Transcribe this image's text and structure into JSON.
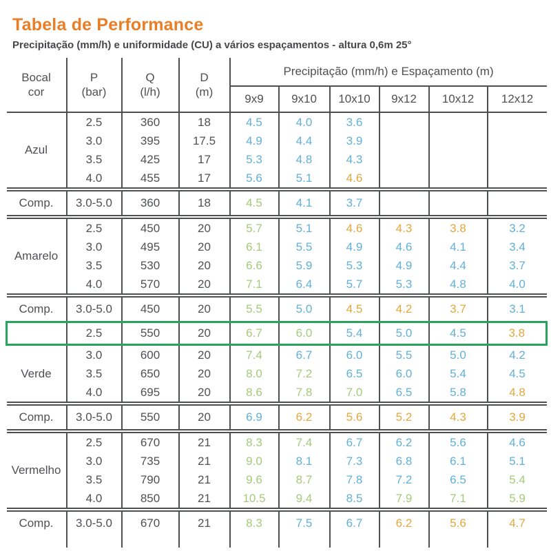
{
  "page": {
    "title": "Tabela de Performance",
    "subtitle": "Precipitação (mm/h) e uniformidade (CU) a vários espaçamentos - altura 0,6m 25°"
  },
  "colors": {
    "title_orange": "#e87f26",
    "line_gray": "#4d4e50",
    "value_blue": "#61b0d8",
    "value_green": "#a5ca79",
    "value_orange": "#e4a73c",
    "highlight_border_green": "#27a35c"
  },
  "table": {
    "headers": {
      "bocal": [
        "Bocal",
        "cor"
      ],
      "p": [
        "P",
        "(bar)"
      ],
      "q": [
        "Q",
        "(l/h)"
      ],
      "d": [
        "D",
        "(m)"
      ],
      "group": "Precipitação (mm/h) e Espaçamento (m)",
      "spacings": [
        "9x9",
        "9x10",
        "10x10",
        "9x12",
        "10x12",
        "12x12"
      ]
    },
    "rows": [
      {
        "kind": "data",
        "label": "Azul",
        "label_rowspan": 4,
        "p": "2.5",
        "q": "360",
        "d": "18",
        "vals": [
          [
            "4.5",
            "blue"
          ],
          [
            "4.0",
            "blue"
          ],
          [
            "3.6",
            "blue"
          ],
          null,
          null,
          null
        ]
      },
      {
        "kind": "data",
        "p": "3.0",
        "q": "395",
        "d": "17.5",
        "vals": [
          [
            "4.9",
            "blue"
          ],
          [
            "4.4",
            "blue"
          ],
          [
            "3.9",
            "blue"
          ],
          null,
          null,
          null
        ]
      },
      {
        "kind": "data",
        "p": "3.5",
        "q": "425",
        "d": "17",
        "vals": [
          [
            "5.3",
            "blue"
          ],
          [
            "4.8",
            "blue"
          ],
          [
            "4.3",
            "blue"
          ],
          null,
          null,
          null
        ]
      },
      {
        "kind": "data",
        "p": "4.0",
        "q": "455",
        "d": "17",
        "vals": [
          [
            "5.6",
            "blue"
          ],
          [
            "5.1",
            "blue"
          ],
          [
            "4.6",
            "orange"
          ],
          null,
          null,
          null
        ]
      },
      {
        "kind": "comp",
        "label": "Comp.",
        "p": "3.0-5.0",
        "q": "360",
        "d": "18",
        "vals": [
          [
            "4.5",
            "green"
          ],
          [
            "4.1",
            "blue"
          ],
          [
            "3.7",
            "blue"
          ],
          null,
          null,
          null
        ]
      },
      {
        "kind": "data",
        "label": "Amarelo",
        "label_rowspan": 4,
        "p": "2.5",
        "q": "450",
        "d": "20",
        "vals": [
          [
            "5.7",
            "green"
          ],
          [
            "5.1",
            "blue"
          ],
          [
            "4.6",
            "orange"
          ],
          [
            "4.3",
            "orange"
          ],
          [
            "3.8",
            "orange"
          ],
          [
            "3.2",
            "blue"
          ]
        ]
      },
      {
        "kind": "data",
        "p": "3.0",
        "q": "495",
        "d": "20",
        "vals": [
          [
            "6.1",
            "green"
          ],
          [
            "5.5",
            "blue"
          ],
          [
            "4.9",
            "blue"
          ],
          [
            "4.6",
            "blue"
          ],
          [
            "4.1",
            "blue"
          ],
          [
            "3.4",
            "blue"
          ]
        ]
      },
      {
        "kind": "data",
        "p": "3.5",
        "q": "530",
        "d": "20",
        "vals": [
          [
            "6.6",
            "green"
          ],
          [
            "5.9",
            "blue"
          ],
          [
            "5.3",
            "blue"
          ],
          [
            "4.9",
            "blue"
          ],
          [
            "4.4",
            "blue"
          ],
          [
            "3.7",
            "blue"
          ]
        ]
      },
      {
        "kind": "data",
        "p": "4.0",
        "q": "570",
        "d": "20",
        "vals": [
          [
            "7.1",
            "green"
          ],
          [
            "6.4",
            "blue"
          ],
          [
            "5.7",
            "blue"
          ],
          [
            "5.3",
            "blue"
          ],
          [
            "4.8",
            "blue"
          ],
          [
            "4.0",
            "blue"
          ]
        ]
      },
      {
        "kind": "comp",
        "before_highlight": true,
        "label": "Comp.",
        "p": "3.0-5.0",
        "q": "450",
        "d": "20",
        "vals": [
          [
            "5.5",
            "green"
          ],
          [
            "5.0",
            "blue"
          ],
          [
            "4.5",
            "orange"
          ],
          [
            "4.2",
            "orange"
          ],
          [
            "3.7",
            "orange"
          ],
          [
            "3.1",
            "blue"
          ]
        ]
      },
      {
        "kind": "data",
        "highlight": true,
        "label": "",
        "p": "2.5",
        "q": "550",
        "d": "20",
        "vals": [
          [
            "6.7",
            "green"
          ],
          [
            "6.0",
            "green"
          ],
          [
            "5.4",
            "blue"
          ],
          [
            "5.0",
            "blue"
          ],
          [
            "4.5",
            "blue"
          ],
          [
            "3.8",
            "orange"
          ]
        ]
      },
      {
        "kind": "data",
        "label": "Verde",
        "label_rowspan": 3,
        "p": "3.0",
        "q": "600",
        "d": "20",
        "vals": [
          [
            "7.4",
            "green"
          ],
          [
            "6.7",
            "blue"
          ],
          [
            "6.0",
            "blue"
          ],
          [
            "5.5",
            "blue"
          ],
          [
            "5.0",
            "blue"
          ],
          [
            "4.2",
            "blue"
          ]
        ]
      },
      {
        "kind": "data",
        "p": "3.5",
        "q": "650",
        "d": "20",
        "vals": [
          [
            "8.0",
            "green"
          ],
          [
            "7.2",
            "green"
          ],
          [
            "6.5",
            "blue"
          ],
          [
            "6.0",
            "blue"
          ],
          [
            "5.4",
            "blue"
          ],
          [
            "4.5",
            "blue"
          ]
        ]
      },
      {
        "kind": "data",
        "p": "4.0",
        "q": "695",
        "d": "20",
        "vals": [
          [
            "8.6",
            "green"
          ],
          [
            "7.8",
            "green"
          ],
          [
            "7.0",
            "green"
          ],
          [
            "6.5",
            "blue"
          ],
          [
            "5.8",
            "blue"
          ],
          [
            "4.8",
            "orange"
          ]
        ]
      },
      {
        "kind": "comp",
        "label": "Comp.",
        "p": "3.0-5.0",
        "q": "550",
        "d": "20",
        "vals": [
          [
            "6.9",
            "blue"
          ],
          [
            "6.2",
            "orange"
          ],
          [
            "5.6",
            "orange"
          ],
          [
            "5.2",
            "orange"
          ],
          [
            "4.3",
            "orange"
          ],
          [
            "3.9",
            "orange"
          ]
        ]
      },
      {
        "kind": "data",
        "label": "Vermelho",
        "label_rowspan": 4,
        "p": "2.5",
        "q": "670",
        "d": "21",
        "vals": [
          [
            "8.3",
            "green"
          ],
          [
            "7.4",
            "green"
          ],
          [
            "6.7",
            "blue"
          ],
          [
            "6.2",
            "blue"
          ],
          [
            "5.6",
            "blue"
          ],
          [
            "4.6",
            "blue"
          ]
        ]
      },
      {
        "kind": "data",
        "p": "3.0",
        "q": "735",
        "d": "21",
        "vals": [
          [
            "9.0",
            "green"
          ],
          [
            "8.1",
            "blue"
          ],
          [
            "7.3",
            "blue"
          ],
          [
            "6.8",
            "blue"
          ],
          [
            "6.1",
            "blue"
          ],
          [
            "5.1",
            "blue"
          ]
        ]
      },
      {
        "kind": "data",
        "p": "3.5",
        "q": "790",
        "d": "21",
        "vals": [
          [
            "9.6",
            "green"
          ],
          [
            "8.7",
            "green"
          ],
          [
            "7.8",
            "blue"
          ],
          [
            "7.2",
            "blue"
          ],
          [
            "6.5",
            "blue"
          ],
          [
            "5.4",
            "green"
          ]
        ]
      },
      {
        "kind": "data",
        "p": "4.0",
        "q": "850",
        "d": "21",
        "vals": [
          [
            "10.5",
            "green"
          ],
          [
            "9.4",
            "green"
          ],
          [
            "8.5",
            "blue"
          ],
          [
            "7.9",
            "green"
          ],
          [
            "7.1",
            "green"
          ],
          [
            "5.9",
            "green"
          ]
        ]
      },
      {
        "kind": "comp",
        "last": true,
        "label": "Comp.",
        "p": "3.0-5.0",
        "q": "670",
        "d": "21",
        "vals": [
          [
            "8.3",
            "green"
          ],
          [
            "7.5",
            "blue"
          ],
          [
            "6.7",
            "blue"
          ],
          [
            "6.2",
            "orange"
          ],
          [
            "5.6",
            "orange"
          ],
          [
            "4.7",
            "orange"
          ]
        ]
      }
    ]
  }
}
